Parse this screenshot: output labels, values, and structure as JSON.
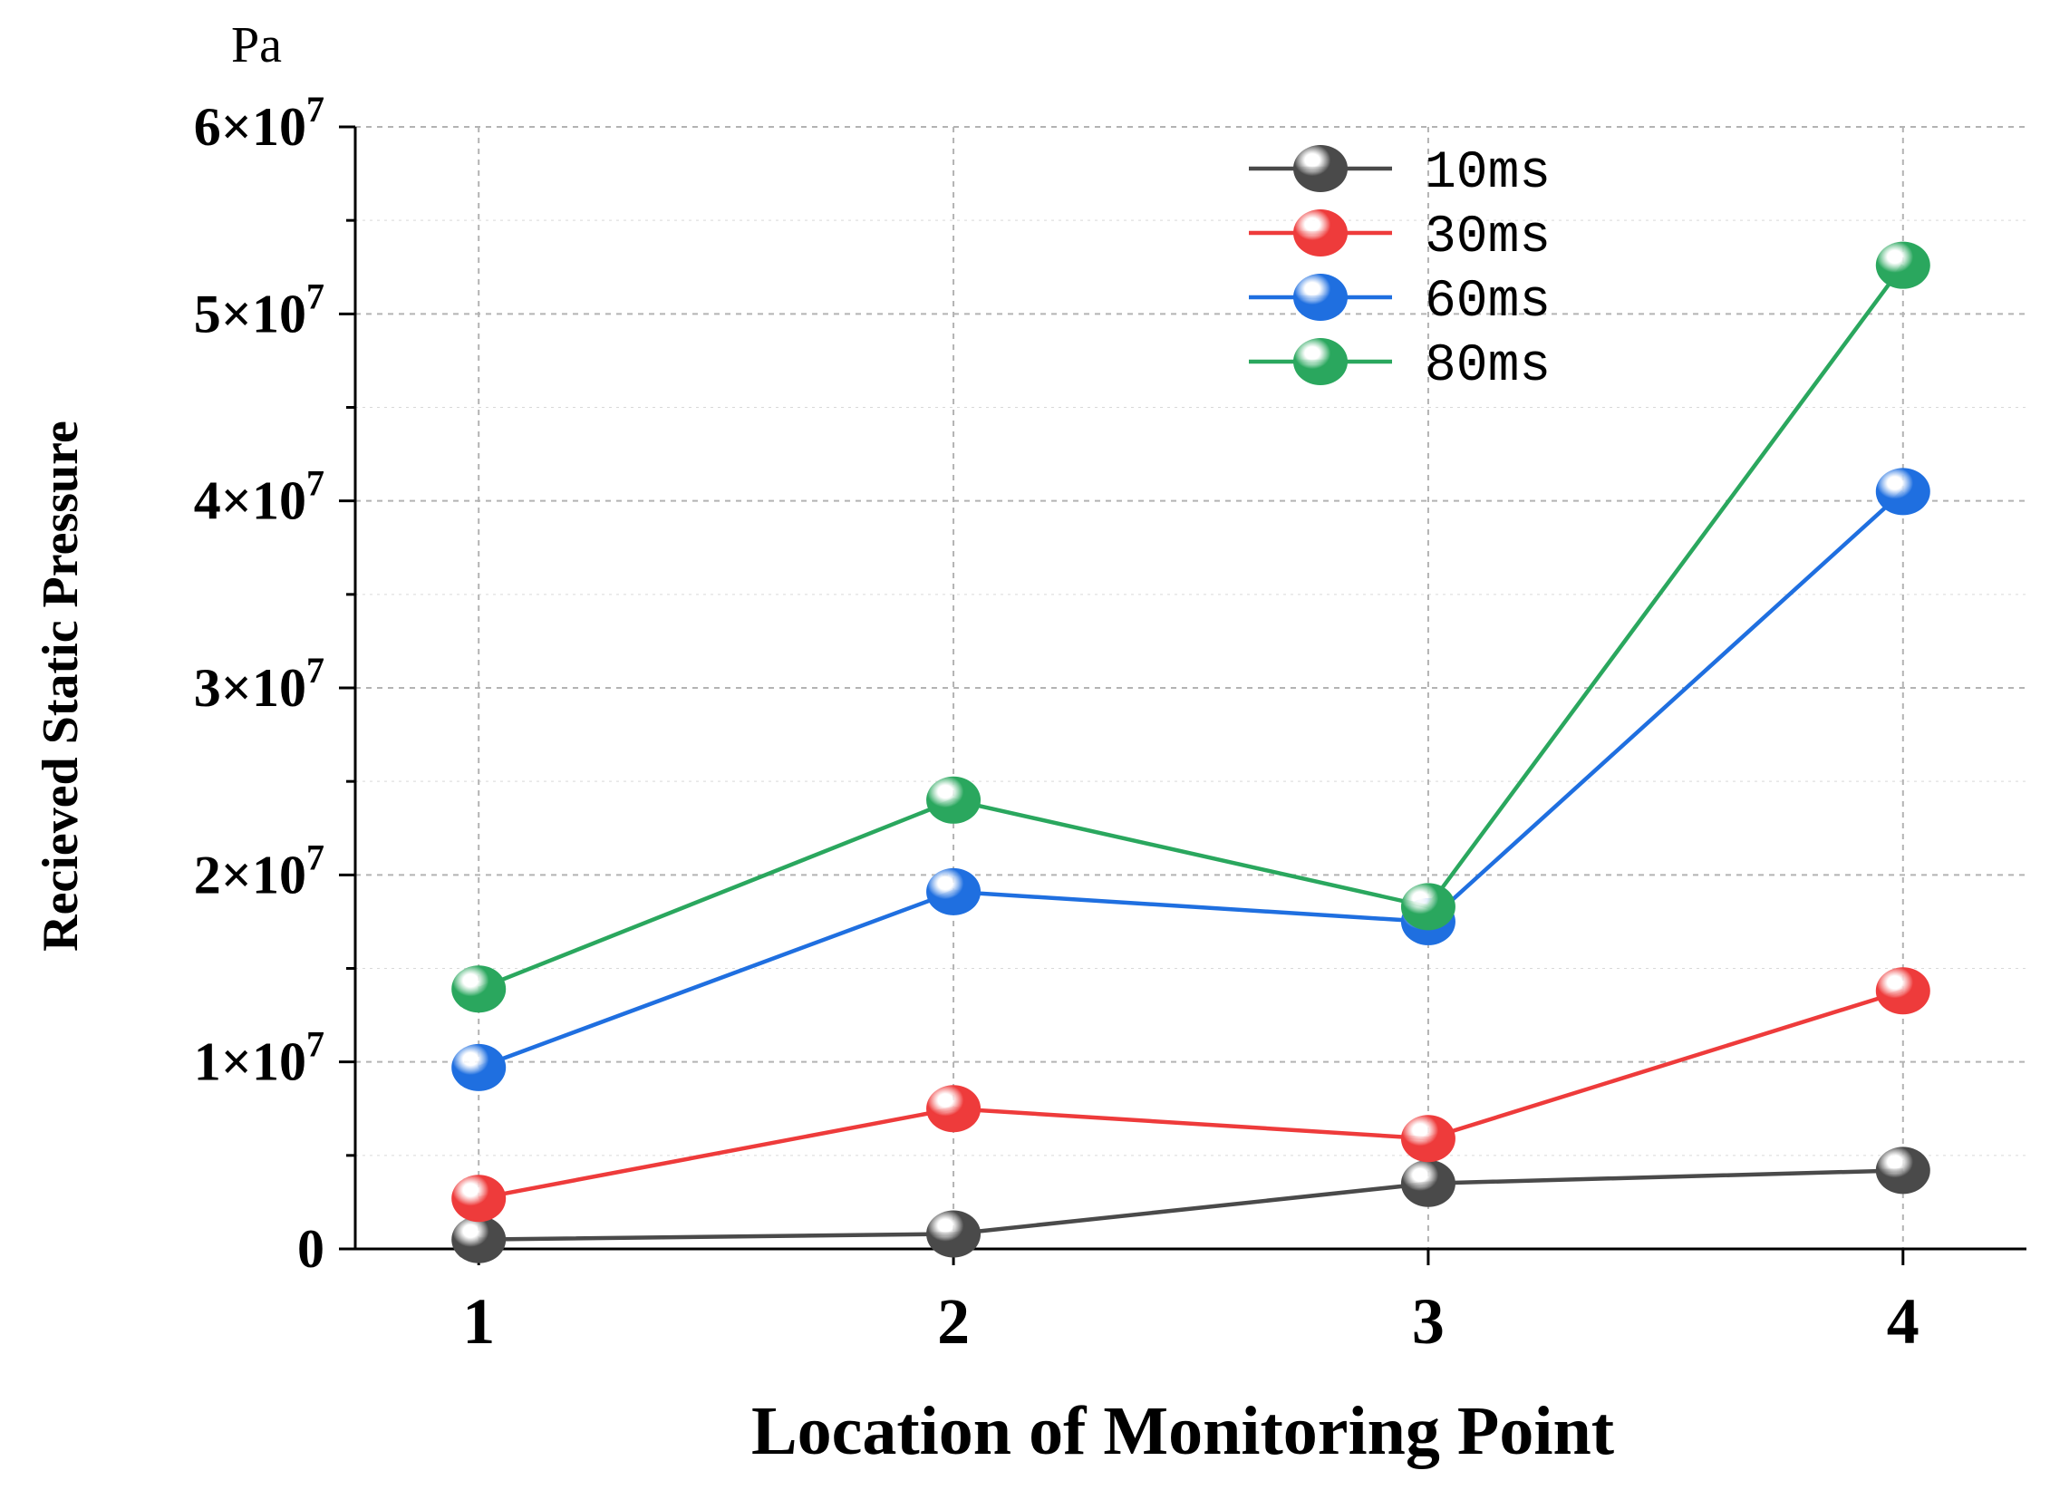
{
  "chart_data": {
    "type": "line",
    "unit_label": "Pa",
    "xlabel": "Location of Monitoring Point",
    "ylabel": "Recieved Static Pressure",
    "x": [
      1,
      2,
      3,
      4
    ],
    "xticks": [
      "1",
      "2",
      "3",
      "4"
    ],
    "xlim": [
      0.74,
      4.26
    ],
    "ylim": [
      0,
      60000000
    ],
    "yticks": [
      {
        "value": 0,
        "label": "0",
        "exp": ""
      },
      {
        "value": 10000000,
        "label": "1×10",
        "exp": "7"
      },
      {
        "value": 20000000,
        "label": "2×10",
        "exp": "7"
      },
      {
        "value": 30000000,
        "label": "3×10",
        "exp": "7"
      },
      {
        "value": 40000000,
        "label": "4×10",
        "exp": "7"
      },
      {
        "value": 50000000,
        "label": "5×10",
        "exp": "7"
      },
      {
        "value": 60000000,
        "label": "6×10",
        "exp": "7"
      }
    ],
    "grid": true,
    "legend_position": "top-right",
    "series": [
      {
        "name": "10ms",
        "color": "#4a4a4a",
        "values": [
          500000,
          800000,
          3500000,
          4200000
        ]
      },
      {
        "name": "30ms",
        "color": "#ee3b3b",
        "values": [
          2700000,
          7500000,
          5900000,
          13800000
        ]
      },
      {
        "name": "60ms",
        "color": "#1f6fe0",
        "values": [
          9700000,
          19100000,
          17500000,
          40500000
        ]
      },
      {
        "name": "80ms",
        "color": "#2aa75e",
        "values": [
          13900000,
          24000000,
          18300000,
          52600000
        ]
      }
    ]
  }
}
